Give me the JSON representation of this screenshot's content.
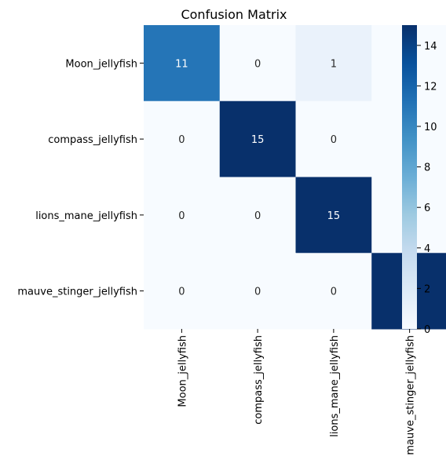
{
  "chart_data": {
    "type": "heatmap",
    "title": "Confusion Matrix",
    "xlabel": "",
    "ylabel": "",
    "rows": [
      "Moon_jellyfish",
      "compass_jellyfish",
      "lions_mane_jellyfish",
      "mauve_stinger_jellyfish"
    ],
    "columns": [
      "Moon_jellyfish",
      "compass_jellyfish",
      "lions_mane_jellyfish",
      "mauve_stinger_jellyfish"
    ],
    "values": [
      [
        11,
        0,
        1,
        0
      ],
      [
        0,
        15,
        0,
        0
      ],
      [
        0,
        0,
        15,
        0
      ],
      [
        0,
        0,
        0,
        15
      ]
    ],
    "colorbar": {
      "range": [
        0,
        15
      ],
      "ticks": [
        "0",
        "2",
        "4",
        "6",
        "8",
        "10",
        "12",
        "14"
      ],
      "colormap": "Blues"
    },
    "colors": {
      "low": "#f7fbff",
      "high": "#08306b"
    }
  }
}
